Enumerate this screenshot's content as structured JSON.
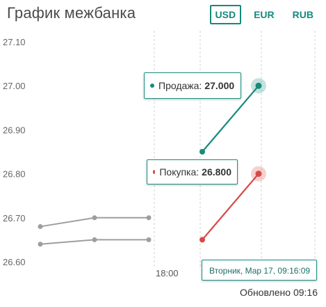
{
  "header": {
    "title": "График межбанка",
    "tabs": [
      {
        "label": "USD",
        "active": true
      },
      {
        "label": "EUR",
        "active": false
      },
      {
        "label": "RUB",
        "active": false
      }
    ]
  },
  "chart_data": {
    "type": "line",
    "title": "",
    "ylim": [
      26.6,
      27.1
    ],
    "yticks": [
      "27.10",
      "27.00",
      "26.90",
      "26.80",
      "26.70",
      "26.60"
    ],
    "xticks": [
      "18:00"
    ],
    "grid": "vertical-dashed",
    "series": [
      {
        "name": "Продажа",
        "color": "#168a7d",
        "past": [
          26.68,
          26.7,
          26.7
        ],
        "current": [
          26.85,
          27.0
        ]
      },
      {
        "name": "Покупка",
        "color": "#d64a45",
        "past": [
          26.64,
          26.65,
          26.65
        ],
        "current": [
          26.65,
          26.8
        ]
      }
    ],
    "past_color": "#9e9e9e"
  },
  "tooltips": {
    "sell": {
      "label": "Продажа:",
      "value": "27.000",
      "dot_color": "#168a7d"
    },
    "buy": {
      "label": "Покупка:",
      "value": "26.800",
      "dot_color": "#d64a45"
    }
  },
  "selected_date": "Вторник, Мар 17, 09:16:09",
  "footer": {
    "updated": "Обновлено 09:16"
  }
}
